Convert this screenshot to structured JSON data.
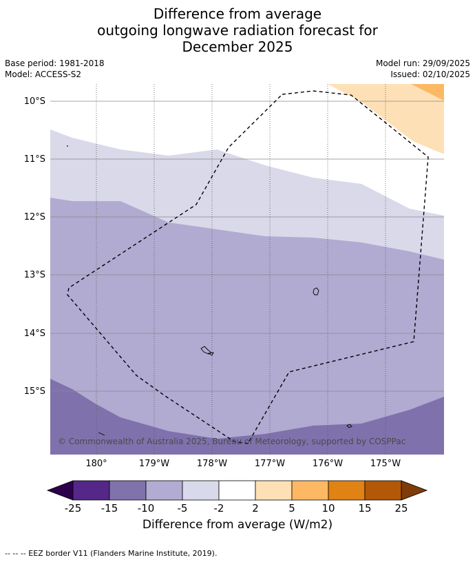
{
  "title": {
    "line1": "Difference from average",
    "line2": "outgoing longwave radiation forecast for",
    "line3": "December 2025"
  },
  "meta": {
    "base_period": "Base period: 1981-2018",
    "model": "Model: ACCESS-S2",
    "model_run": "Model run: 29/09/2025",
    "issued": "Issued: 02/10/2025"
  },
  "map": {
    "lat_labels": [
      "10°S",
      "11°S",
      "12°S",
      "13°S",
      "14°S",
      "15°S"
    ],
    "lon_labels": [
      "180°",
      "179°W",
      "178°W",
      "177°W",
      "176°W",
      "175°W"
    ],
    "copyright": "© Commonwealth of Australia 2025, Bureau of Meteorology, supported by COSPPac",
    "colors": {
      "bin_m15_m10": "#7f72ac",
      "bin_m10_m5": "#b1aad1",
      "bin_m5_m2": "#d9d9ea",
      "bin_2_5": "#fee0b6",
      "bin_5_10": "#fdb863",
      "grid": "#888888"
    }
  },
  "colorbar": {
    "ticks": [
      "-25",
      "-15",
      "-10",
      "-5",
      "-2",
      "2",
      "5",
      "10",
      "15",
      "25"
    ],
    "colors": [
      "#2d004b",
      "#542788",
      "#8073ac",
      "#b2abd2",
      "#d8daeb",
      "#ffffff",
      "#fee0b6",
      "#fdb863",
      "#e08214",
      "#b35806",
      "#7f3b08"
    ],
    "label": "Difference from average (W/m2)"
  },
  "footnote": "--  --  -- EEZ border V11 (Flanders Marine Institute, 2019)."
}
